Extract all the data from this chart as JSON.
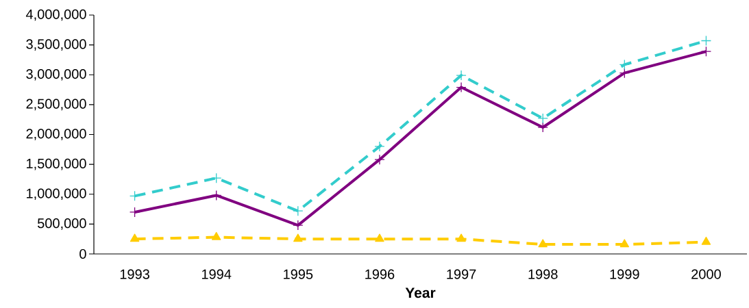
{
  "chart_data": {
    "type": "line",
    "xlabel": "Year",
    "categories": [
      "1993",
      "1994",
      "1995",
      "1996",
      "1997",
      "1998",
      "1999",
      "2000"
    ],
    "series": [
      {
        "color": "#33cccc",
        "marker": "cross",
        "line_style": "dashed",
        "values": [
          970000,
          1270000,
          720000,
          1800000,
          2990000,
          2270000,
          3170000,
          3570000
        ]
      },
      {
        "color": "#800080",
        "marker": "cross",
        "line_style": "solid",
        "values": [
          700000,
          980000,
          480000,
          1580000,
          2790000,
          2120000,
          3030000,
          3390000
        ]
      },
      {
        "color": "#ffcc00",
        "marker": "triangle",
        "line_style": "dashed",
        "values": [
          250000,
          280000,
          250000,
          250000,
          250000,
          160000,
          160000,
          200000
        ]
      }
    ],
    "ylim": [
      0,
      4000000
    ],
    "yticks": [
      {
        "value": 0,
        "label": "0"
      },
      {
        "value": 500000,
        "label": "500,000"
      },
      {
        "value": 1000000,
        "label": "1,000,000"
      },
      {
        "value": 1500000,
        "label": "1,500,000"
      },
      {
        "value": 2000000,
        "label": "2,000,000"
      },
      {
        "value": 2500000,
        "label": "2,500,000"
      },
      {
        "value": 3000000,
        "label": "3,000,000"
      },
      {
        "value": 3500000,
        "label": "3,500,000"
      },
      {
        "value": 4000000,
        "label": "4,000,000"
      }
    ],
    "grid": false,
    "legend": false
  }
}
